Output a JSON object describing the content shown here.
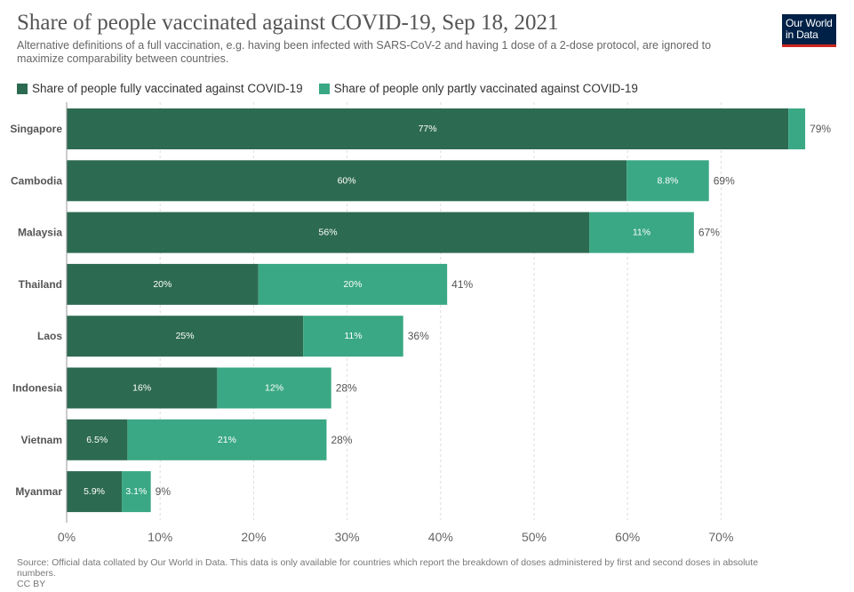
{
  "header": {
    "title": "Share of people vaccinated against COVID-19, Sep 18, 2021",
    "subtitle": "Alternative definitions of a full vaccination, e.g. having been infected with SARS-CoV-2 and having 1 dose of a 2-dose protocol, are ignored to maximize comparability between countries.",
    "logo_line1": "Our World",
    "logo_line2": "in Data"
  },
  "colors": {
    "fully": "#2d6a52",
    "partly": "#3aa884",
    "grid": "#dddddd",
    "axis": "#666666"
  },
  "chart_data": {
    "type": "bar",
    "orientation": "horizontal",
    "stacked": true,
    "title": "Share of people vaccinated against COVID-19, Sep 18, 2021",
    "categories": [
      "Singapore",
      "Cambodia",
      "Malaysia",
      "Thailand",
      "Laos",
      "Indonesia",
      "Vietnam",
      "Myanmar"
    ],
    "series": [
      {
        "name": "Share of people fully vaccinated against COVID-19",
        "values": [
          77.2,
          59.9,
          55.9,
          20.5,
          25.3,
          16.1,
          6.5,
          5.9
        ],
        "labels": [
          "77%",
          "60%",
          "56%",
          "20%",
          "25%",
          "16%",
          "6.5%",
          "5.9%"
        ]
      },
      {
        "name": "Share of people only partly vaccinated against COVID-19",
        "values": [
          1.8,
          8.8,
          11.2,
          20.2,
          10.7,
          12.2,
          21.3,
          3.1
        ],
        "labels": [
          "",
          "8.8%",
          "11%",
          "20%",
          "11%",
          "12%",
          "21%",
          "3.1%"
        ]
      }
    ],
    "totals": [
      "79%",
      "69%",
      "67%",
      "41%",
      "36%",
      "28%",
      "28%",
      "9%"
    ],
    "x_ticks": [
      0,
      10,
      20,
      30,
      40,
      50,
      60,
      70
    ],
    "x_tick_labels": [
      "0%",
      "10%",
      "20%",
      "30%",
      "40%",
      "50%",
      "60%",
      "70%"
    ],
    "xlim": [
      0,
      80
    ],
    "grid": true,
    "legend": "top-left"
  },
  "footer": {
    "source": "Source: Official data collated by Our World in Data. This data is only available for countries which report the breakdown of doses administered by first and second doses in absolute numbers.",
    "license": "CC BY"
  }
}
